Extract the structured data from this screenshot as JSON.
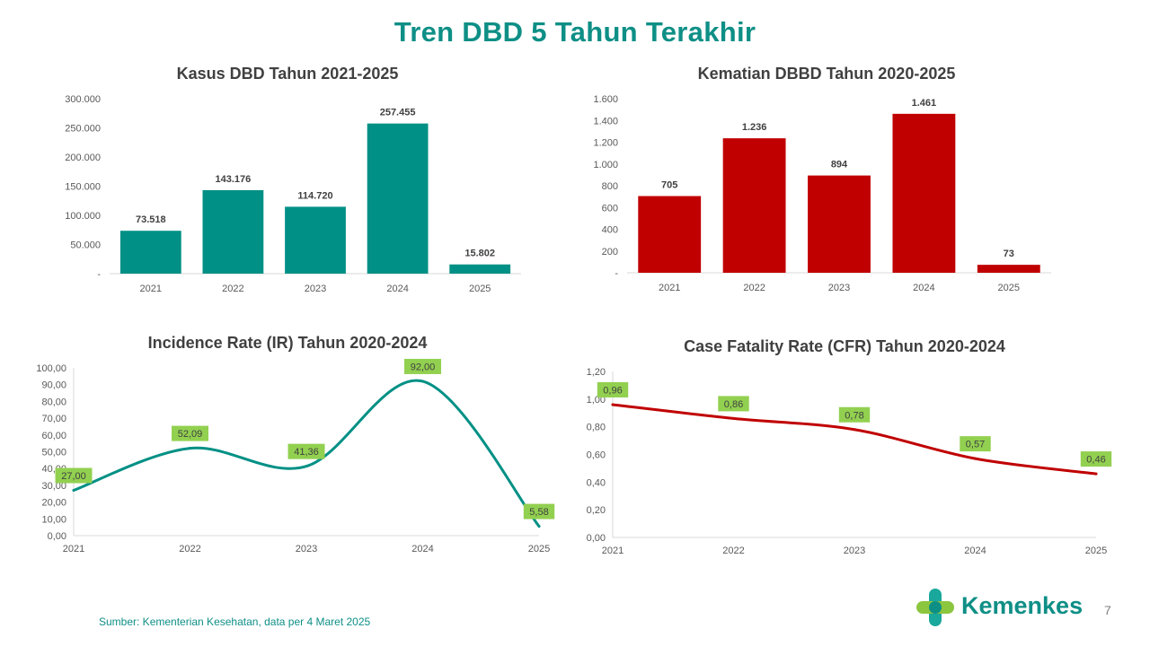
{
  "page": {
    "title": "Tren DBD 5 Tahun Terakhir",
    "source_note": "Sumber: Kementerian Kesehatan, data per 4 Maret 2025",
    "logo_text": "Kemenkes",
    "page_number": "7"
  },
  "colors": {
    "teal": "#009085",
    "red": "#c00000",
    "label_green": "#92d050",
    "axis_text": "#595959"
  },
  "chart_data": [
    {
      "type": "bar",
      "title": "Kasus DBD Tahun 2021-2025",
      "categories": [
        "2021",
        "2022",
        "2023",
        "2024",
        "2025"
      ],
      "values": [
        73518,
        143176,
        114720,
        257455,
        15802
      ],
      "data_labels": [
        "73.518",
        "143.176",
        "114.720",
        "257.455",
        "15.802"
      ],
      "ylim": [
        0,
        300000
      ],
      "yticks": [
        0,
        50000,
        100000,
        150000,
        200000,
        250000,
        300000
      ],
      "ytick_labels": [
        "-",
        "50.000",
        "100.000",
        "150.000",
        "200.000",
        "250.000",
        "300.000"
      ],
      "color": "#009085",
      "grid": false,
      "legend": "none"
    },
    {
      "type": "bar",
      "title": "Kematian DBBD Tahun 2020-2025",
      "categories": [
        "2021",
        "2022",
        "2023",
        "2024",
        "2025"
      ],
      "values": [
        705,
        1236,
        894,
        1461,
        73
      ],
      "data_labels": [
        "705",
        "1.236",
        "894",
        "1.461",
        "73"
      ],
      "ylim": [
        0,
        1600
      ],
      "yticks": [
        0,
        200,
        400,
        600,
        800,
        1000,
        1200,
        1400,
        1600
      ],
      "ytick_labels": [
        "-",
        "200",
        "400",
        "600",
        "800",
        "1.000",
        "1.200",
        "1.400",
        "1.600"
      ],
      "color": "#c00000",
      "grid": false,
      "legend": "none"
    },
    {
      "type": "line",
      "title": "Incidence Rate (IR) Tahun 2020-2024",
      "categories": [
        "2021",
        "2022",
        "2023",
        "2024",
        "2025"
      ],
      "values": [
        27.0,
        52.09,
        41.36,
        92.0,
        5.58
      ],
      "data_labels": [
        "27,00",
        "52,09",
        "41,36",
        "92,00",
        "5,58"
      ],
      "ylim": [
        0,
        100
      ],
      "yticks": [
        0,
        10,
        20,
        30,
        40,
        50,
        60,
        70,
        80,
        90,
        100
      ],
      "ytick_labels": [
        "0,00",
        "10,00",
        "20,00",
        "30,00",
        "40,00",
        "50,00",
        "60,00",
        "70,00",
        "80,00",
        "90,00",
        "100,00"
      ],
      "color": "#009085",
      "smooth": true,
      "grid": false,
      "legend": "none"
    },
    {
      "type": "line",
      "title": "Case Fatality Rate (CFR) Tahun 2020-2024",
      "categories": [
        "2021",
        "2022",
        "2023",
        "2024",
        "2025"
      ],
      "values": [
        0.96,
        0.86,
        0.78,
        0.57,
        0.46
      ],
      "data_labels": [
        "0,96",
        "0,86",
        "0,78",
        "0,57",
        "0,46"
      ],
      "ylim": [
        0,
        1.2
      ],
      "yticks": [
        0,
        0.2,
        0.4,
        0.6,
        0.8,
        1.0,
        1.2
      ],
      "ytick_labels": [
        "0,00",
        "0,20",
        "0,40",
        "0,60",
        "0,80",
        "1,00",
        "1,20"
      ],
      "color": "#c00000",
      "smooth": true,
      "grid": false,
      "legend": "none"
    }
  ]
}
